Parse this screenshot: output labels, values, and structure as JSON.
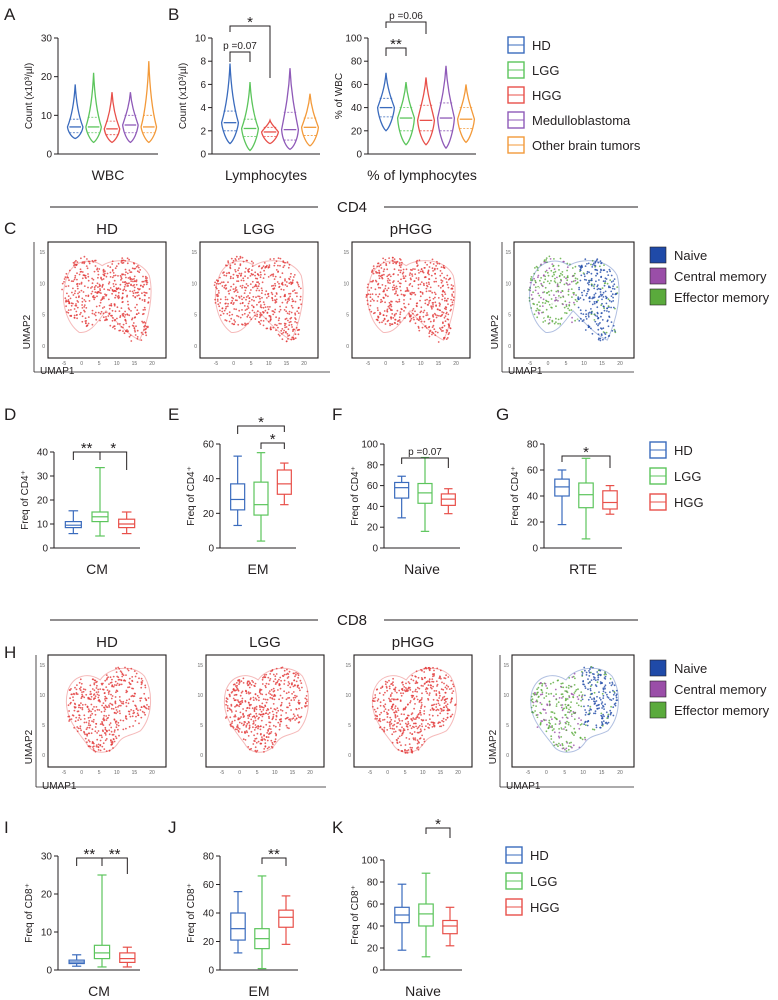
{
  "figure": {
    "colors": {
      "HD": "#3a6bbd",
      "LGG": "#5cc55c",
      "HGG": "#e8504a",
      "Medulloblastoma": "#8f5ab8",
      "Other": "#f39a3a",
      "naive": "#1f4aa8",
      "central": "#9a4ea8",
      "effector": "#5aaa3c",
      "umap_red": "#e23a3a"
    },
    "panel_letters": [
      "A",
      "B",
      "C",
      "D",
      "E",
      "F",
      "G",
      "H",
      "I",
      "J",
      "K"
    ],
    "legend_groups_a": [
      "HD",
      "LGG",
      "HGG",
      "Medulloblastoma",
      "Other brain tumors"
    ],
    "legend_groups_short": [
      "HD",
      "LGG",
      "HGG"
    ],
    "legend_umap": [
      "Naive",
      "Central memory",
      "Effector memory"
    ],
    "cd4_title": "CD4",
    "cd8_title": "CD8",
    "umap_titles": [
      "HD",
      "LGG",
      "pHGG"
    ],
    "umap_axes": {
      "x": "UMAP1",
      "y": "UMAP2"
    },
    "umap_ticks": [
      "-5",
      "0",
      "5",
      "10",
      "15",
      "20"
    ],
    "significance": {
      "b_left_p": "p =0.07",
      "b_star": "*",
      "c_p": "p =0.06",
      "c_stars": "**",
      "d_stars1": "**",
      "d_stars2": "*",
      "e_star1": "*",
      "e_star2": "*",
      "f_p": "p =0.07",
      "g_star": "*",
      "i_stars1": "**",
      "i_stars2": "**",
      "j_stars": "**",
      "k_star": "*"
    }
  },
  "chart_data": [
    {
      "id": "A",
      "type": "violin",
      "category": "WBC",
      "ylabel": "Count (x10³/µl)",
      "ylim": [
        0,
        30
      ],
      "yticks": [
        0,
        10,
        20,
        30
      ],
      "groups": [
        "HD",
        "LGG",
        "HGG",
        "Medulloblastoma",
        "Other brain tumors"
      ],
      "medians": [
        7,
        7,
        6.5,
        7.5,
        7
      ],
      "q1": [
        5.5,
        5.5,
        5,
        5.5,
        5.5
      ],
      "q3": [
        9,
        9.5,
        8.5,
        10,
        10
      ],
      "min": [
        4,
        3,
        3,
        3,
        3
      ],
      "max": [
        18,
        21,
        16,
        16,
        24
      ]
    },
    {
      "id": "B",
      "type": "violin",
      "category": "Lymphocytes",
      "ylabel": "Count (x10³/µl)",
      "ylim": [
        0,
        10
      ],
      "yticks": [
        0,
        2,
        4,
        6,
        8,
        10
      ],
      "groups": [
        "HD",
        "LGG",
        "HGG",
        "Medulloblastoma",
        "Other brain tumors"
      ],
      "medians": [
        2.7,
        2.2,
        1.9,
        2.1,
        2.3
      ],
      "q1": [
        2,
        1.5,
        1.5,
        1.2,
        1.6
      ],
      "q3": [
        3.7,
        3,
        2.3,
        3.6,
        3.1
      ],
      "min": [
        0.9,
        0.3,
        0.9,
        0.4,
        0.7
      ],
      "max": [
        7.8,
        6.2,
        2.9,
        7.4,
        5.2
      ]
    },
    {
      "id": "C",
      "type": "violin",
      "category": "% of lymphocytes",
      "ylabel": "% of WBC",
      "ylim": [
        0,
        100
      ],
      "yticks": [
        0,
        20,
        40,
        60,
        80,
        100
      ],
      "groups": [
        "HD",
        "LGG",
        "HGG",
        "Medulloblastoma",
        "Other brain tumors"
      ],
      "medians": [
        40,
        31,
        29,
        31,
        30
      ],
      "q1": [
        32,
        20,
        20,
        20,
        22
      ],
      "q3": [
        48,
        40,
        42,
        44,
        40
      ],
      "min": [
        20,
        8,
        8,
        5,
        10
      ],
      "max": [
        70,
        62,
        66,
        76,
        60
      ]
    },
    {
      "id": "D",
      "type": "box",
      "category": "CM",
      "ylabel": "Freq of CD4⁺",
      "ylim": [
        0,
        40
      ],
      "yticks": [
        0,
        10,
        20,
        30,
        40
      ],
      "groups": [
        "HD",
        "LGG",
        "HGG"
      ],
      "min": [
        6,
        5,
        6
      ],
      "q1": [
        8.5,
        11,
        8.5
      ],
      "median": [
        9.5,
        13,
        10
      ],
      "q3": [
        11,
        15,
        12
      ],
      "max": [
        15.5,
        33.5,
        15
      ]
    },
    {
      "id": "E",
      "type": "box",
      "category": "EM",
      "ylabel": "Freq of CD4⁺",
      "ylim": [
        0,
        60
      ],
      "yticks": [
        0,
        20,
        40,
        60
      ],
      "groups": [
        "HD",
        "LGG",
        "HGG"
      ],
      "min": [
        13,
        4,
        25
      ],
      "q1": [
        22,
        19,
        31
      ],
      "median": [
        28,
        25,
        37
      ],
      "q3": [
        37,
        38,
        45
      ],
      "max": [
        53,
        55,
        49
      ]
    },
    {
      "id": "F",
      "type": "box",
      "category": "Naive",
      "ylabel": "Freq of CD4⁺",
      "ylim": [
        0,
        100
      ],
      "yticks": [
        0,
        20,
        40,
        60,
        80,
        100
      ],
      "groups": [
        "HD",
        "LGG",
        "HGG"
      ],
      "min": [
        29,
        16,
        33
      ],
      "q1": [
        48,
        43,
        41
      ],
      "median": [
        58,
        53,
        47
      ],
      "q3": [
        63,
        62,
        52
      ],
      "max": [
        69,
        87,
        57
      ]
    },
    {
      "id": "G",
      "type": "box",
      "category": "RTE",
      "ylabel": "Freq of CD4⁺",
      "ylim": [
        0,
        80
      ],
      "yticks": [
        0,
        20,
        40,
        60,
        80
      ],
      "groups": [
        "HD",
        "LGG",
        "HGG"
      ],
      "min": [
        18,
        7,
        26
      ],
      "q1": [
        40,
        31,
        30
      ],
      "median": [
        47,
        41,
        35
      ],
      "q3": [
        53,
        50,
        44
      ],
      "max": [
        60,
        69,
        48
      ]
    },
    {
      "id": "I",
      "type": "box",
      "category": "CM",
      "ylabel": "Freq of CD8⁺",
      "ylim": [
        0,
        30
      ],
      "yticks": [
        0,
        10,
        20,
        30
      ],
      "groups": [
        "HD",
        "LGG",
        "HGG"
      ],
      "min": [
        1,
        0.8,
        0.8
      ],
      "q1": [
        1.7,
        3,
        2
      ],
      "median": [
        2.1,
        4.5,
        3
      ],
      "q3": [
        2.6,
        6.5,
        4.5
      ],
      "max": [
        4,
        25,
        6
      ]
    },
    {
      "id": "J",
      "type": "box",
      "category": "EM",
      "ylabel": "Freq of CD8⁺",
      "ylim": [
        0,
        80
      ],
      "yticks": [
        0,
        20,
        40,
        60,
        80
      ],
      "groups": [
        "HD",
        "LGG",
        "HGG"
      ],
      "min": [
        12,
        1,
        18
      ],
      "q1": [
        21,
        15,
        30
      ],
      "median": [
        29,
        22,
        37
      ],
      "q3": [
        40,
        29,
        42
      ],
      "max": [
        55,
        66,
        52
      ]
    },
    {
      "id": "K",
      "type": "box",
      "category": "Naive",
      "ylabel": "Freq of CD8⁺",
      "ylim": [
        0,
        100
      ],
      "yticks": [
        0,
        20,
        40,
        60,
        80,
        100
      ],
      "groups": [
        "HD",
        "LGG",
        "HGG"
      ],
      "min": [
        18,
        12,
        22
      ],
      "q1": [
        43,
        40,
        33
      ],
      "median": [
        50,
        51,
        40
      ],
      "q3": [
        57,
        60,
        45
      ],
      "max": [
        78,
        88,
        57
      ]
    }
  ]
}
